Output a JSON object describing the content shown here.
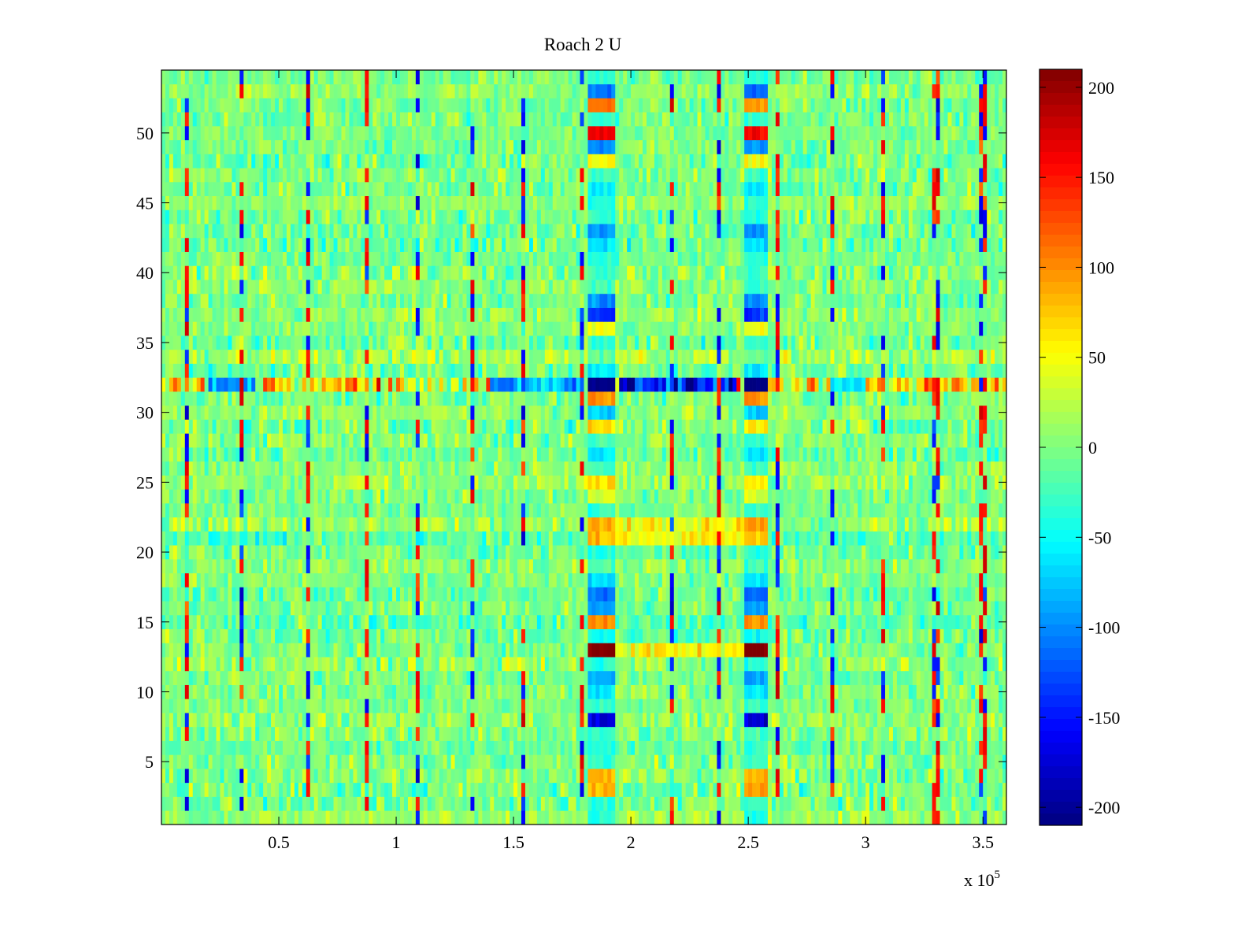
{
  "chart_data": {
    "type": "heatmap",
    "title": "Roach 2 U",
    "colormap": "jet",
    "xlim": [
      0,
      360000
    ],
    "ylim": [
      0.5,
      54.5
    ],
    "x_ticks": [
      50000,
      100000,
      150000,
      200000,
      250000,
      300000,
      350000
    ],
    "x_tick_labels": [
      "0.5",
      "1",
      "1.5",
      "2",
      "2.5",
      "3",
      "3.5"
    ],
    "x_exponent_label": "x 10",
    "x_exponent_power": "5",
    "y_ticks": [
      5,
      10,
      15,
      20,
      25,
      30,
      35,
      40,
      45,
      50
    ],
    "y_tick_labels": [
      "5",
      "10",
      "15",
      "20",
      "25",
      "30",
      "35",
      "40",
      "45",
      "50"
    ],
    "color_range": [
      -210,
      210
    ],
    "colorbar_ticks": [
      200,
      150,
      100,
      50,
      0,
      -50,
      -100,
      -150,
      -200
    ],
    "colorbar_tick_labels": [
      "200",
      "150",
      "100",
      "50",
      "0",
      "-50",
      "-100",
      "-150",
      "-200"
    ],
    "rows": 54,
    "columns": 216,
    "hot_band_row": 32,
    "burst_column_ranges": [
      [
        182000,
        193000
      ],
      [
        248000,
        258000
      ]
    ],
    "spike_columns": [
      11000,
      34000,
      63000,
      87000,
      109000,
      132000,
      154000,
      179000,
      217000,
      238000,
      263000,
      286000,
      308000,
      330000,
      350000
    ],
    "burst_row_values": {
      "1": -40,
      "3": 90,
      "4": 80,
      "8": -170,
      "10": -60,
      "11": -90,
      "12": -40,
      "13": 210,
      "14": -50,
      "15": 100,
      "16": -90,
      "17": -110,
      "18": -60,
      "21": 80,
      "22": 90,
      "24": 40,
      "25": 60,
      "27": -60,
      "29": 60,
      "30": -70,
      "31": 100,
      "32": -210,
      "33": -60,
      "36": 50,
      "37": -140,
      "38": -100,
      "42": -60,
      "43": -90,
      "45": -40,
      "46": -60,
      "48": 50,
      "49": -100,
      "50": 160,
      "52": 100,
      "53": -110
    }
  }
}
